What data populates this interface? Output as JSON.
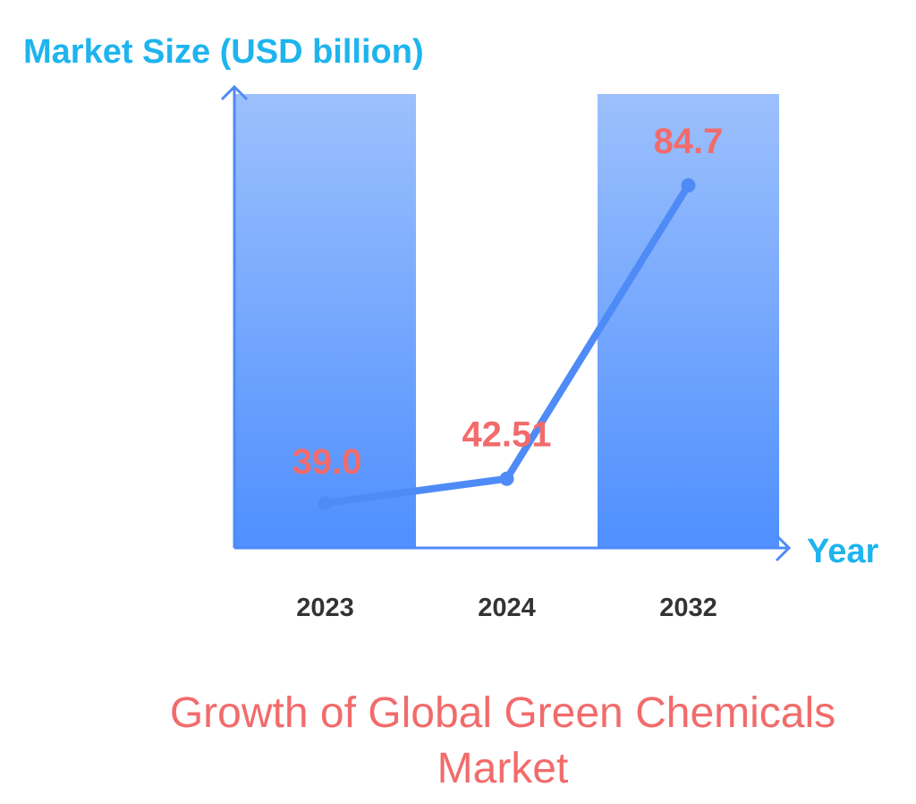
{
  "colors": {
    "axis_title": "#1EB4EE",
    "axis_line": "#4F8BF7",
    "bar_top": "#9CC0FC",
    "bar_bottom": "#4F8FFF",
    "line": "#4F8BF7",
    "data_label": "#F26B6B",
    "tick_label": "#333333",
    "title": "#F26B6B"
  },
  "chart_data": {
    "type": "bar",
    "title": "Growth of Global Green Chemicals Market",
    "xlabel": "Year",
    "ylabel": "Market Size (USD billion)",
    "categories": [
      "2023",
      "2024",
      "2032"
    ],
    "values": [
      39.0,
      42.51,
      84.7
    ],
    "data_labels": [
      "39.0",
      "42.51",
      "84.7"
    ],
    "bars_drawn": [
      "2023",
      "2032"
    ],
    "grid": false,
    "legend": "none"
  }
}
